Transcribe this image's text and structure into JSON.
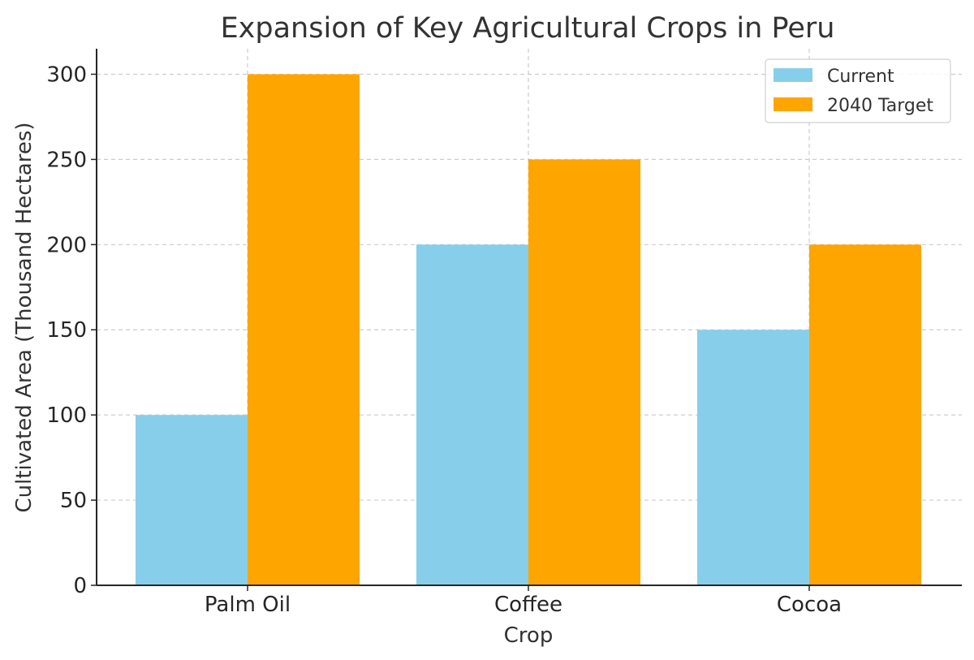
{
  "chart_data": {
    "type": "bar",
    "title": "Expansion of Key Agricultural Crops in Peru",
    "xlabel": "Crop",
    "ylabel": "Cultivated Area (Thousand Hectares)",
    "categories": [
      "Palm Oil",
      "Coffee",
      "Cocoa"
    ],
    "series": [
      {
        "name": "Current",
        "values": [
          100,
          200,
          150
        ],
        "color": "#87CEEB"
      },
      {
        "name": "2040 Target",
        "values": [
          300,
          250,
          200
        ],
        "color": "#FFA500"
      }
    ],
    "ylim": [
      0,
      315
    ],
    "yticks": [
      0,
      50,
      100,
      150,
      200,
      250,
      300
    ],
    "grid": true,
    "legend_position": "top-right"
  }
}
